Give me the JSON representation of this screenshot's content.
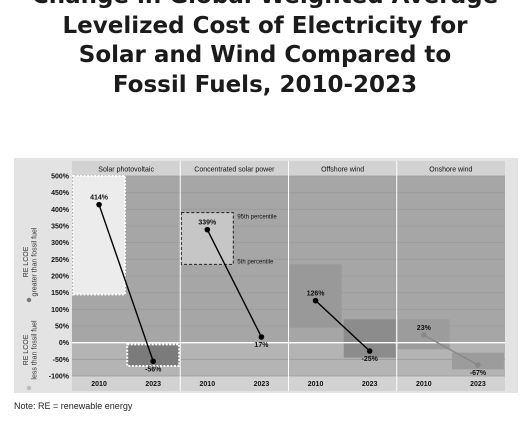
{
  "title": [
    "Change in Global Weighted Average",
    "Levelized Cost of Electricity for",
    "Solar and Wind Compared to",
    "Fossil Fuels, 2010-2023"
  ],
  "note": "Note: RE = renewable energy",
  "chart_data": {
    "type": "line",
    "panels": [
      "Solar photovoltaic",
      "Concentrated solar power",
      "Offshore wind",
      "Onshore wind"
    ],
    "x_categories": [
      "2010",
      "2023"
    ],
    "yticks": [
      "500%",
      "450%",
      "400%",
      "350%",
      "300%",
      "250%",
      "200%",
      "150%",
      "100%",
      "50%",
      "0%",
      "-50%",
      "-100%"
    ],
    "ylim": [
      -100,
      500
    ],
    "ylabel_upper": [
      "RE LCOE",
      "greater than fossil fuel"
    ],
    "ylabel_lower": [
      "RE LCOE",
      "less than fossil fuel"
    ],
    "series": [
      {
        "values": [
          414,
          -56
        ],
        "labels": [
          "414%",
          "-56%"
        ],
        "range_2010": [
          145,
          500
        ],
        "range_2023": [
          -70,
          -5
        ],
        "color": "#000000"
      },
      {
        "values": [
          339,
          17
        ],
        "labels": [
          "339%",
          "17%"
        ],
        "range_2010": [
          235,
          390
        ],
        "range_2023": null,
        "color": "#000000"
      },
      {
        "values": [
          126,
          -25
        ],
        "labels": [
          "126%",
          "-25%"
        ],
        "range_2010": [
          45,
          235
        ],
        "range_2023": [
          -45,
          70
        ],
        "color": "#000000"
      },
      {
        "values": [
          23,
          -67
        ],
        "labels": [
          "23%",
          "-67%"
        ],
        "range_2010": [
          -20,
          70
        ],
        "range_2023": [
          -80,
          -30
        ],
        "color": "#888888"
      }
    ],
    "annotations": {
      "upper": "95th percentile",
      "lower": "5th percentile"
    },
    "grid": true
  }
}
